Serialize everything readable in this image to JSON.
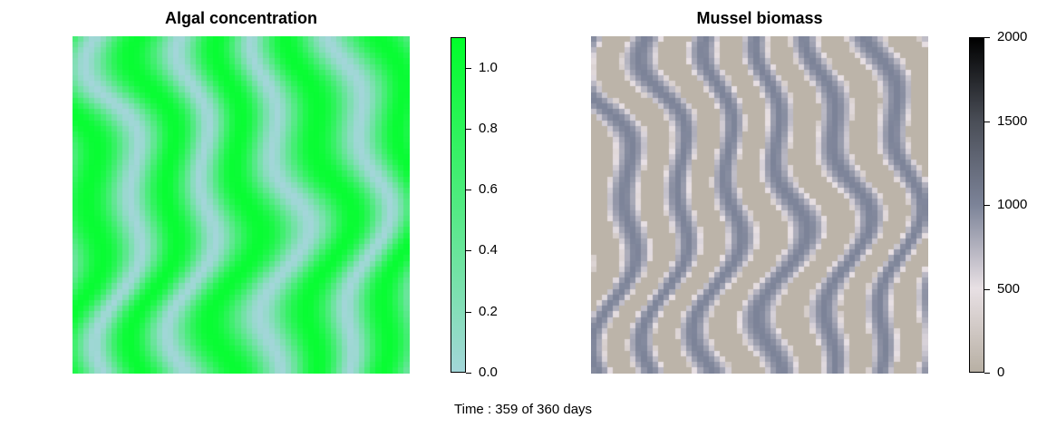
{
  "footer": {
    "time_prefix": "Time :",
    "time_text": "359 of 360 days"
  },
  "chart_data": [
    {
      "type": "heatmap",
      "title": "Algal concentration",
      "colorbar": {
        "min": 0.0,
        "max": 1.1,
        "ticks": [
          0.0,
          0.2,
          0.4,
          0.6,
          0.8,
          1.0
        ],
        "tick_labels": [
          "0.0",
          "0.2",
          "0.4",
          "0.6",
          "0.8",
          "1.0"
        ],
        "low_color": "#a3d6d9",
        "high_color": "#00ff2a"
      },
      "pattern": "wavy vertical stripes (approx. 4 high-concentration bands)"
    },
    {
      "type": "heatmap",
      "title": "Mussel biomass",
      "colorbar": {
        "min": 0,
        "max": 2000,
        "ticks": [
          0,
          500,
          1000,
          1500,
          2000
        ],
        "tick_labels": [
          "0",
          "500",
          "1000",
          "1500",
          "2000"
        ],
        "stops": [
          "#b8b0a4",
          "#e8e0e4",
          "#7c8398",
          "#4a4e57",
          "#000000"
        ]
      },
      "pattern": "wavy vertical stripes (approx. 6 high-biomass bands)"
    }
  ]
}
